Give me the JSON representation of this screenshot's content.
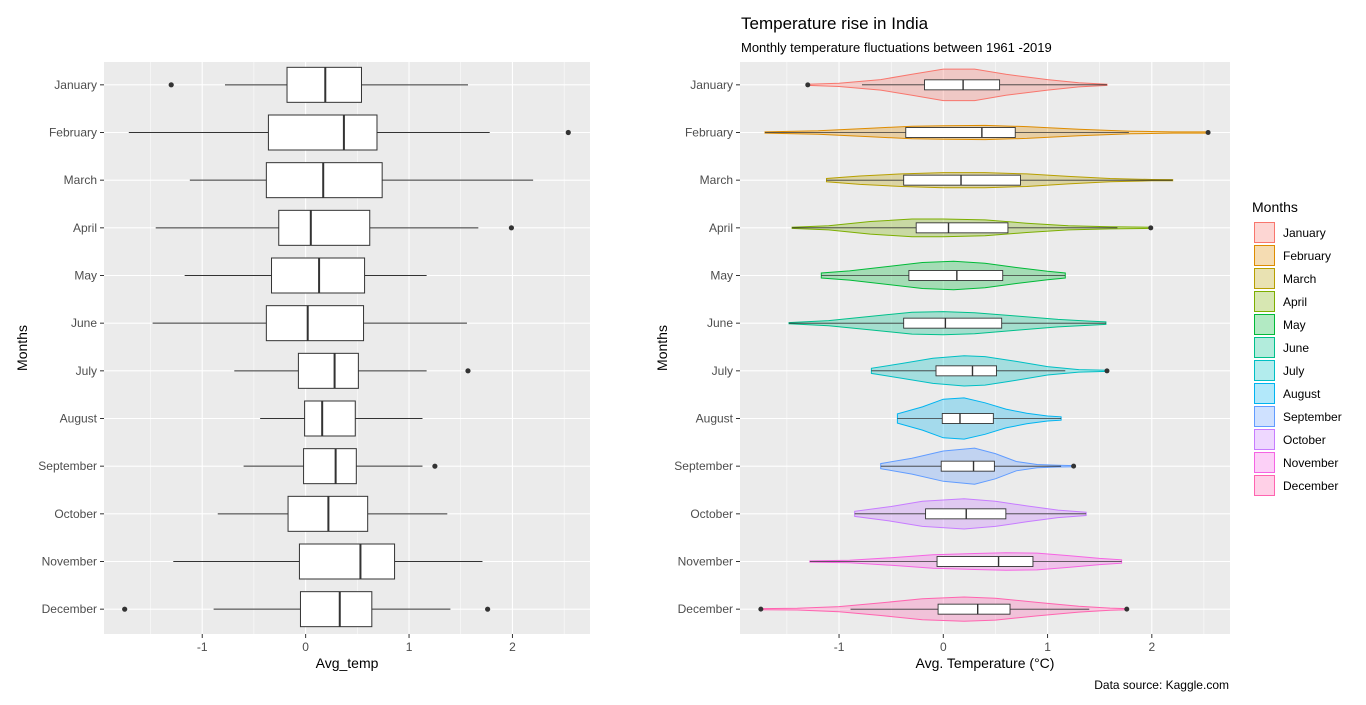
{
  "chart_data": [
    {
      "type": "box",
      "categories": [
        "January",
        "February",
        "March",
        "April",
        "May",
        "June",
        "July",
        "August",
        "September",
        "October",
        "November",
        "December"
      ],
      "title": "",
      "xlabel": "Avg_temp",
      "ylabel": "Months",
      "xlim": [
        -1.95,
        2.75
      ],
      "xticks": [
        -1,
        0,
        1,
        2
      ],
      "grid": true,
      "series": [
        {
          "boxes": [
            {
              "min": -0.78,
              "q1": -0.18,
              "median": 0.19,
              "q3": 0.54,
              "max": 1.57,
              "outliers": [
                -1.3
              ]
            },
            {
              "min": -1.71,
              "q1": -0.36,
              "median": 0.37,
              "q3": 0.69,
              "max": 1.78,
              "outliers": [
                2.54
              ]
            },
            {
              "min": -1.12,
              "q1": -0.38,
              "median": 0.17,
              "q3": 0.74,
              "max": 2.2,
              "outliers": []
            },
            {
              "min": -1.45,
              "q1": -0.26,
              "median": 0.05,
              "q3": 0.62,
              "max": 1.67,
              "outliers": [
                1.99
              ]
            },
            {
              "min": -1.17,
              "q1": -0.33,
              "median": 0.13,
              "q3": 0.57,
              "max": 1.17,
              "outliers": []
            },
            {
              "min": -1.48,
              "q1": -0.38,
              "median": 0.02,
              "q3": 0.56,
              "max": 1.56,
              "outliers": []
            },
            {
              "min": -0.69,
              "q1": -0.07,
              "median": 0.28,
              "q3": 0.51,
              "max": 1.17,
              "outliers": [
                1.57
              ]
            },
            {
              "min": -0.44,
              "q1": -0.01,
              "median": 0.16,
              "q3": 0.48,
              "max": 1.13,
              "outliers": []
            },
            {
              "min": -0.6,
              "q1": -0.02,
              "median": 0.29,
              "q3": 0.49,
              "max": 1.13,
              "outliers": [
                1.25
              ]
            },
            {
              "min": -0.85,
              "q1": -0.17,
              "median": 0.22,
              "q3": 0.6,
              "max": 1.37,
              "outliers": []
            },
            {
              "min": -1.28,
              "q1": -0.06,
              "median": 0.53,
              "q3": 0.86,
              "max": 1.71,
              "outliers": []
            },
            {
              "min": -0.89,
              "q1": -0.05,
              "median": 0.33,
              "q3": 0.64,
              "max": 1.4,
              "outliers": [
                -1.75,
                1.76
              ]
            }
          ]
        }
      ]
    },
    {
      "type": "violin",
      "title": "Temperature rise in India",
      "subtitle": "Monthly temperature fluctuations between 1961 -2019",
      "caption": "Data source: Kaggle.com",
      "xlabel": "Avg. Temperature (°C)",
      "ylabel": "Months",
      "xlim": [
        -1.95,
        2.75
      ],
      "xticks": [
        -1,
        0,
        1,
        2
      ],
      "grid": true,
      "legend": {
        "title": "Months",
        "placement": "right"
      },
      "categories": [
        "January",
        "February",
        "March",
        "April",
        "May",
        "June",
        "July",
        "August",
        "September",
        "October",
        "November",
        "December"
      ],
      "colors": [
        "#F8766D",
        "#DE8C00",
        "#B79F00",
        "#7CAE00",
        "#00BA38",
        "#00C08B",
        "#00BFC4",
        "#00B4F0",
        "#619CFF",
        "#C77CFF",
        "#F564E3",
        "#FF64B0"
      ],
      "series": [
        {
          "name": "January",
          "box": {
            "min": -0.78,
            "q1": -0.18,
            "median": 0.19,
            "q3": 0.54,
            "max": 1.57,
            "outliers": [
              -1.3
            ]
          },
          "range": [
            -1.3,
            1.57
          ],
          "density": {
            "x": [
              -1.3,
              -1.0,
              -0.6,
              -0.3,
              0.0,
              0.3,
              0.6,
              1.0,
              1.3,
              1.57
            ],
            "w": [
              0.01,
              0.08,
              0.25,
              0.5,
              0.75,
              0.75,
              0.5,
              0.25,
              0.1,
              0.02
            ]
          }
        },
        {
          "name": "February",
          "box": {
            "min": -1.71,
            "q1": -0.36,
            "median": 0.37,
            "q3": 0.69,
            "max": 1.78,
            "outliers": [
              2.54
            ]
          },
          "range": [
            -1.71,
            2.54
          ],
          "density": {
            "x": [
              -1.71,
              -1.2,
              -0.7,
              -0.3,
              0.0,
              0.4,
              0.8,
              1.3,
              1.8,
              2.2,
              2.54
            ],
            "w": [
              0.02,
              0.08,
              0.2,
              0.3,
              0.32,
              0.34,
              0.28,
              0.15,
              0.06,
              0.02,
              0.01
            ]
          }
        },
        {
          "name": "March",
          "box": {
            "min": -1.12,
            "q1": -0.38,
            "median": 0.17,
            "q3": 0.74,
            "max": 2.2,
            "outliers": []
          },
          "range": [
            -1.12,
            2.2
          ],
          "density": {
            "x": [
              -1.12,
              -0.8,
              -0.4,
              0.0,
              0.4,
              0.8,
              1.2,
              1.6,
              2.0,
              2.2
            ],
            "w": [
              0.08,
              0.2,
              0.3,
              0.36,
              0.36,
              0.3,
              0.18,
              0.08,
              0.03,
              0.01
            ]
          }
        },
        {
          "name": "April",
          "box": {
            "min": -1.45,
            "q1": -0.26,
            "median": 0.05,
            "q3": 0.62,
            "max": 1.67,
            "outliers": [
              1.99
            ]
          },
          "range": [
            -1.45,
            1.99
          ],
          "density": {
            "x": [
              -1.45,
              -1.1,
              -0.7,
              -0.3,
              0.0,
              0.4,
              0.8,
              1.2,
              1.6,
              1.99
            ],
            "w": [
              0.02,
              0.1,
              0.3,
              0.42,
              0.42,
              0.38,
              0.22,
              0.1,
              0.05,
              0.01
            ]
          }
        },
        {
          "name": "May",
          "box": {
            "min": -1.17,
            "q1": -0.33,
            "median": 0.13,
            "q3": 0.57,
            "max": 1.17,
            "outliers": []
          },
          "range": [
            -1.17,
            1.17
          ],
          "density": {
            "x": [
              -1.17,
              -0.9,
              -0.5,
              -0.2,
              0.1,
              0.4,
              0.7,
              1.0,
              1.17
            ],
            "w": [
              0.12,
              0.22,
              0.45,
              0.62,
              0.68,
              0.58,
              0.38,
              0.2,
              0.12
            ]
          }
        },
        {
          "name": "June",
          "box": {
            "min": -1.48,
            "q1": -0.38,
            "median": 0.02,
            "q3": 0.56,
            "max": 1.56,
            "outliers": []
          },
          "range": [
            -1.48,
            1.56
          ],
          "density": {
            "x": [
              -1.48,
              -1.1,
              -0.7,
              -0.3,
              0.0,
              0.3,
              0.7,
              1.1,
              1.4,
              1.56
            ],
            "w": [
              0.01,
              0.12,
              0.32,
              0.52,
              0.55,
              0.5,
              0.34,
              0.18,
              0.1,
              0.06
            ]
          }
        },
        {
          "name": "July",
          "box": {
            "min": -0.69,
            "q1": -0.07,
            "median": 0.28,
            "q3": 0.51,
            "max": 1.17,
            "outliers": [
              1.57
            ]
          },
          "range": [
            -0.69,
            1.57
          ],
          "density": {
            "x": [
              -0.69,
              -0.4,
              -0.1,
              0.2,
              0.4,
              0.7,
              1.0,
              1.3,
              1.57
            ],
            "w": [
              0.12,
              0.35,
              0.6,
              0.72,
              0.68,
              0.45,
              0.2,
              0.06,
              0.01
            ]
          }
        },
        {
          "name": "August",
          "box": {
            "min": -0.44,
            "q1": -0.01,
            "median": 0.16,
            "q3": 0.48,
            "max": 1.13,
            "outliers": []
          },
          "range": [
            -0.44,
            1.13
          ],
          "density": {
            "x": [
              -0.44,
              -0.2,
              0.0,
              0.2,
              0.4,
              0.6,
              0.8,
              1.0,
              1.13
            ],
            "w": [
              0.22,
              0.55,
              0.92,
              0.98,
              0.75,
              0.45,
              0.25,
              0.12,
              0.08
            ]
          }
        },
        {
          "name": "September",
          "box": {
            "min": -0.6,
            "q1": -0.02,
            "median": 0.29,
            "q3": 0.49,
            "max": 1.13,
            "outliers": [
              1.25
            ]
          },
          "range": [
            -0.6,
            1.25
          ],
          "density": {
            "x": [
              -0.6,
              -0.3,
              0.0,
              0.3,
              0.5,
              0.7,
              0.9,
              1.1,
              1.25
            ],
            "w": [
              0.12,
              0.38,
              0.72,
              0.86,
              0.6,
              0.22,
              0.08,
              0.04,
              0.01
            ]
          }
        },
        {
          "name": "October",
          "box": {
            "min": -0.85,
            "q1": -0.17,
            "median": 0.22,
            "q3": 0.6,
            "max": 1.37,
            "outliers": []
          },
          "range": [
            -0.85,
            1.37
          ],
          "density": {
            "x": [
              -0.85,
              -0.5,
              -0.2,
              0.2,
              0.5,
              0.8,
              1.1,
              1.37
            ],
            "w": [
              0.12,
              0.35,
              0.6,
              0.72,
              0.6,
              0.38,
              0.18,
              0.08
            ]
          }
        },
        {
          "name": "November",
          "box": {
            "min": -1.28,
            "q1": -0.06,
            "median": 0.53,
            "q3": 0.86,
            "max": 1.71,
            "outliers": []
          },
          "range": [
            -1.28,
            1.71
          ],
          "density": {
            "x": [
              -1.28,
              -0.9,
              -0.5,
              -0.1,
              0.3,
              0.6,
              0.9,
              1.2,
              1.5,
              1.71
            ],
            "w": [
              0.01,
              0.06,
              0.18,
              0.32,
              0.38,
              0.42,
              0.4,
              0.28,
              0.15,
              0.08
            ]
          }
        },
        {
          "name": "December",
          "box": {
            "min": -0.89,
            "q1": -0.05,
            "median": 0.33,
            "q3": 0.64,
            "max": 1.4,
            "outliers": [
              -1.75,
              1.76
            ]
          },
          "range": [
            -1.75,
            1.76
          ],
          "density": {
            "x": [
              -1.75,
              -1.4,
              -1.0,
              -0.6,
              -0.2,
              0.2,
              0.5,
              0.9,
              1.3,
              1.6,
              1.76
            ],
            "w": [
              0.01,
              0.04,
              0.12,
              0.3,
              0.5,
              0.58,
              0.52,
              0.32,
              0.14,
              0.05,
              0.01
            ]
          }
        }
      ]
    }
  ]
}
